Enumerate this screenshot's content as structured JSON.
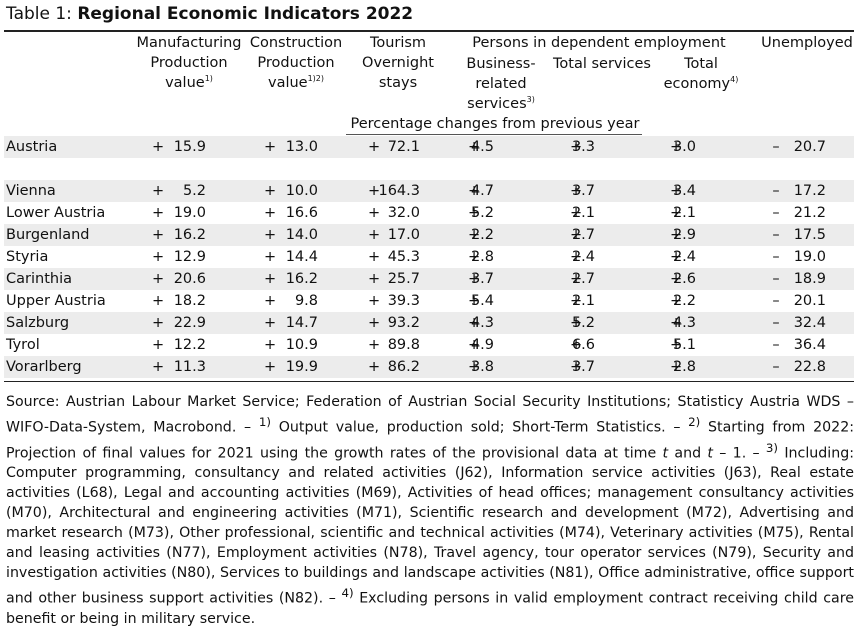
{
  "title": {
    "prefix": "Table 1: ",
    "main": "Regional Economic Indicators 2022"
  },
  "header": {
    "manufacturing": {
      "l1": "Manufacturing",
      "l2": "Production",
      "l3": "value",
      "sup": "1)"
    },
    "construction": {
      "l1": "Construction",
      "l2": "Production",
      "l3": "value",
      "sup": "1)2)"
    },
    "tourism": {
      "l1": "Tourism",
      "l2": "Overnight",
      "l3": "stays"
    },
    "persons_group": "Persons in dependent employment",
    "business": {
      "l1": "Business-",
      "l2": "related",
      "l3": "services",
      "sup": "3)"
    },
    "total_services": "Total services",
    "total_economy": {
      "l1": "Total",
      "l2": "economy",
      "sup": "4)"
    },
    "unemployed": "Unemployed",
    "unit_row": "Percentage changes from previous year"
  },
  "rows": [
    {
      "region": "Austria",
      "values": [
        [
          "+",
          "15.9"
        ],
        [
          "+",
          "13.0"
        ],
        [
          "+",
          "72.1"
        ],
        [
          "+",
          "4.5"
        ],
        [
          "+",
          "3.3"
        ],
        [
          "+",
          "3.0"
        ],
        [
          "–",
          "20.7"
        ]
      ]
    },
    {
      "region": "Vienna",
      "values": [
        [
          "+",
          "5.2"
        ],
        [
          "+",
          "10.0"
        ],
        [
          "+",
          "164.3"
        ],
        [
          "+",
          "4.7"
        ],
        [
          "+",
          "3.7"
        ],
        [
          "+",
          "3.4"
        ],
        [
          "–",
          "17.2"
        ]
      ]
    },
    {
      "region": "Lower Austria",
      "values": [
        [
          "+",
          "19.0"
        ],
        [
          "+",
          "16.6"
        ],
        [
          "+",
          "32.0"
        ],
        [
          "+",
          "5.2"
        ],
        [
          "+",
          "2.1"
        ],
        [
          "+",
          "2.1"
        ],
        [
          "–",
          "21.2"
        ]
      ]
    },
    {
      "region": "Burgenland",
      "values": [
        [
          "+",
          "16.2"
        ],
        [
          "+",
          "14.0"
        ],
        [
          "+",
          "17.0"
        ],
        [
          "+",
          "2.2"
        ],
        [
          "+",
          "2.7"
        ],
        [
          "+",
          "2.9"
        ],
        [
          "–",
          "17.5"
        ]
      ]
    },
    {
      "region": "Styria",
      "values": [
        [
          "+",
          "12.9"
        ],
        [
          "+",
          "14.4"
        ],
        [
          "+",
          "45.3"
        ],
        [
          "+",
          "2.8"
        ],
        [
          "+",
          "2.4"
        ],
        [
          "+",
          "2.4"
        ],
        [
          "–",
          "19.0"
        ]
      ]
    },
    {
      "region": "Carinthia",
      "values": [
        [
          "+",
          "20.6"
        ],
        [
          "+",
          "16.2"
        ],
        [
          "+",
          "25.7"
        ],
        [
          "+",
          "3.7"
        ],
        [
          "+",
          "2.7"
        ],
        [
          "+",
          "2.6"
        ],
        [
          "–",
          "18.9"
        ]
      ]
    },
    {
      "region": "Upper Austria",
      "values": [
        [
          "+",
          "18.2"
        ],
        [
          "+",
          "9.8"
        ],
        [
          "+",
          "39.3"
        ],
        [
          "+",
          "5.4"
        ],
        [
          "+",
          "2.1"
        ],
        [
          "+",
          "2.2"
        ],
        [
          "–",
          "20.1"
        ]
      ]
    },
    {
      "region": "Salzburg",
      "values": [
        [
          "+",
          "22.9"
        ],
        [
          "+",
          "14.7"
        ],
        [
          "+",
          "93.2"
        ],
        [
          "+",
          "4.3"
        ],
        [
          "+",
          "5.2"
        ],
        [
          "+",
          "4.3"
        ],
        [
          "–",
          "32.4"
        ]
      ]
    },
    {
      "region": "Tyrol",
      "values": [
        [
          "+",
          "12.2"
        ],
        [
          "+",
          "10.9"
        ],
        [
          "+",
          "89.8"
        ],
        [
          "+",
          "4.9"
        ],
        [
          "+",
          "6.6"
        ],
        [
          "+",
          "5.1"
        ],
        [
          "–",
          "36.4"
        ]
      ]
    },
    {
      "region": "Vorarlberg",
      "values": [
        [
          "+",
          "11.3"
        ],
        [
          "+",
          "19.9"
        ],
        [
          "+",
          "86.2"
        ],
        [
          "+",
          "3.8"
        ],
        [
          "+",
          "3.7"
        ],
        [
          "+",
          "2.8"
        ],
        [
          "–",
          "22.8"
        ]
      ]
    }
  ],
  "footnote": {
    "p1": "Source: Austrian Labour Market Service; Federation of Austrian Social Security Institutions; Statisticy Austria WDS – WIFO-Data-System, Macrobond. – ",
    "s1": "1)",
    "p2": " Output value, production sold; Short-Term Statistics. – ",
    "s2": "2)",
    "p3": " Starting from 2022: Projection of final values for 2021 using the growth rates of the provisional data at time ",
    "t1": "t",
    "p4": " and ",
    "t2": "t",
    "p5": " – 1. – ",
    "s3": "3)",
    "p6": " Including: Computer programming, consultancy and related activities (J62), Information service activities (J63), Real estate activities (L68), Legal and accounting activities (M69), Activities of head offices; management consultancy activities (M70), Architectural and engineering activities (M71), Scientific research and development (M72), Advertising and market research (M73), Other professional, scientific and technical activities (M74), Veterinary activities (M75), Rental and leasing activities (N77), Employment activities (N78), Travel agency, tour operator services (N79), Security and investigation activities (N80), Services to buildings and landscape activities (N81), Office administrative, office support and other business support activities (N82). – ",
    "s4": "4)",
    "p7": " Excluding persons in valid employment contract receiving child care benefit or being in military service."
  }
}
